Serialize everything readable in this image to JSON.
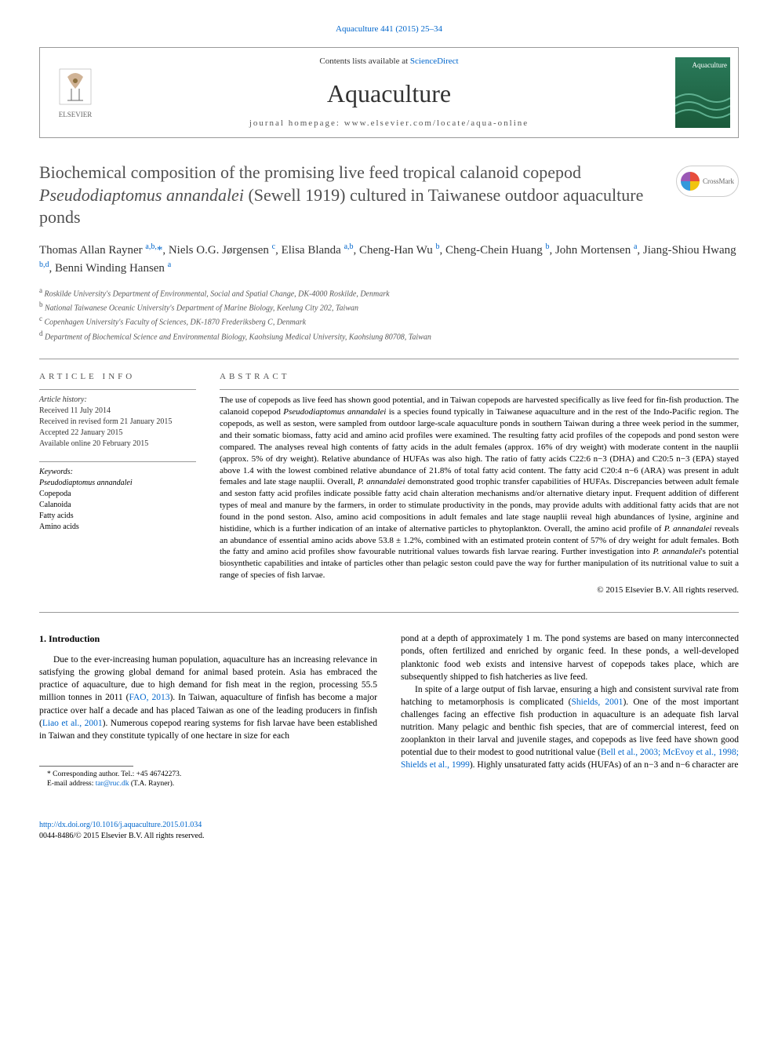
{
  "journal_ref": "Aquaculture 441 (2015) 25–34",
  "header": {
    "contents_text": "Contents lists available at ",
    "contents_link": "ScienceDirect",
    "journal_name": "Aquaculture",
    "homepage_label": "journal homepage: ",
    "homepage_url": "www.elsevier.com/locate/aqua-online",
    "publisher": "ELSEVIER",
    "cover_title": "Aquaculture"
  },
  "crossmark": "CrossMark",
  "title_html": "Biochemical composition of the promising live feed tropical calanoid copepod <em>Pseudodiaptomus annandalei</em> (Sewell 1919) cultured in Taiwanese outdoor aquaculture ponds",
  "authors_html": "Thomas Allan Rayner <sup>a,b,</sup><span class='corr'>*</span>, Niels O.G. Jørgensen <sup>c</sup>, Elisa Blanda <sup>a,b</sup>, Cheng-Han Wu <sup>b</sup>, Cheng-Chein Huang <sup>b</sup>, John Mortensen <sup>a</sup>, Jiang-Shiou Hwang <sup>b,d</sup>, Benni Winding Hansen <sup>a</sup>",
  "affiliations": [
    {
      "sup": "a",
      "text": "Roskilde University's Department of Environmental, Social and Spatial Change, DK-4000 Roskilde, Denmark"
    },
    {
      "sup": "b",
      "text": "National Taiwanese Oceanic University's Department of Marine Biology, Keelung City 202, Taiwan"
    },
    {
      "sup": "c",
      "text": "Copenhagen University's Faculty of Sciences, DK-1870 Frederiksberg C, Denmark"
    },
    {
      "sup": "d",
      "text": "Department of Biochemical Science and Environmental Biology, Kaohsiung Medical University, Kaohsiung 80708, Taiwan"
    }
  ],
  "info": {
    "heading": "ARTICLE INFO",
    "history_label": "Article history:",
    "history": [
      "Received 11 July 2014",
      "Received in revised form 21 January 2015",
      "Accepted 22 January 2015",
      "Available online 20 February 2015"
    ],
    "keywords_label": "Keywords:",
    "keywords": [
      "<em>Pseudodiaptomus annandalei</em>",
      "Copepoda",
      "Calanoida",
      "Fatty acids",
      "Amino acids"
    ]
  },
  "abstract": {
    "heading": "ABSTRACT",
    "text_html": "The use of copepods as live feed has shown good potential, and in Taiwan copepods are harvested specifically as live feed for fin-fish production. The calanoid copepod <em>Pseudodiaptomus annandalei</em> is a species found typically in Taiwanese aquaculture and in the rest of the Indo-Pacific region. The copepods, as well as seston, were sampled from outdoor large-scale aquaculture ponds in southern Taiwan during a three week period in the summer, and their somatic biomass, fatty acid and amino acid profiles were examined. The resulting fatty acid profiles of the copepods and pond seston were compared. The analyses reveal high contents of fatty acids in the adult females (approx. 16% of dry weight) with moderate content in the nauplii (approx. 5% of dry weight). Relative abundance of HUFAs was also high. The ratio of fatty acids C22:6 n−3 (DHA) and C20:5 n−3 (EPA) stayed above 1.4 with the lowest combined relative abundance of 21.8% of total fatty acid content. The fatty acid C20:4 n−6 (ARA) was present in adult females and late stage nauplii. Overall, <em>P. annandalei</em> demonstrated good trophic transfer capabilities of HUFAs. Discrepancies between adult female and seston fatty acid profiles indicate possible fatty acid chain alteration mechanisms and/or alternative dietary input. Frequent addition of different types of meal and manure by the farmers, in order to stimulate productivity in the ponds, may provide adults with additional fatty acids that are not found in the pond seston. Also, amino acid compositions in adult females and late stage nauplii reveal high abundances of lysine, arginine and histidine, which is a further indication of an intake of alternative particles to phytoplankton. Overall, the amino acid profile of <em>P. annandalei</em> reveals an abundance of essential amino acids above 53.8 ± 1.2%, combined with an estimated protein content of 57% of dry weight for adult females. Both the fatty and amino acid profiles show favourable nutritional values towards fish larvae rearing. Further investigation into <em>P. annandalei</em>'s potential biosynthetic capabilities and intake of particles other than pelagic seston could pave the way for further manipulation of its nutritional value to suit a range of species of fish larvae.",
    "copyright": "© 2015 Elsevier B.V. All rights reserved."
  },
  "body": {
    "section_heading": "1. Introduction",
    "col1_p1_html": "Due to the ever-increasing human population, aquaculture has an increasing relevance in satisfying the growing global demand for animal based protein. Asia has embraced the practice of aquaculture, due to high demand for fish meat in the region, processing 55.5 million tonnes in 2011 (<a href='#'>FAO, 2013</a>). In Taiwan, aquaculture of finfish has become a major practice over half a decade and has placed Taiwan as one of the leading producers in finfish (<a href='#'>Liao et al., 2001</a>). Numerous copepod rearing systems for fish larvae have been established in Taiwan and they constitute typically of one hectare in size for each",
    "col2_p1_html": "pond at a depth of approximately 1 m. The pond systems are based on many interconnected ponds, often fertilized and enriched by organic feed. In these ponds, a well-developed planktonic food web exists and intensive harvest of copepods takes place, which are subsequently shipped to fish hatcheries as live feed.",
    "col2_p2_html": "In spite of a large output of fish larvae, ensuring a high and consistent survival rate from hatching to metamorphosis is complicated (<a href='#'>Shields, 2001</a>). One of the most important challenges facing an effective fish production in aquaculture is an adequate fish larval nutrition. Many pelagic and benthic fish species, that are of commercial interest, feed on zooplankton in their larval and juvenile stages, and copepods as live feed have shown good potential due to their modest to good nutritional value (<a href='#'>Bell et al., 2003; McEvoy et al., 1998; Shields et al., 1999</a>). Highly unsaturated fatty acids (HUFAs) of an n−3 and n−6 character are"
  },
  "footnote": {
    "corr_text": "* Corresponding author. Tel.: +45 46742273.",
    "email_label": "E-mail address: ",
    "email": "tar@ruc.dk",
    "email_suffix": " (T.A. Rayner)."
  },
  "footer": {
    "doi": "http://dx.doi.org/10.1016/j.aquaculture.2015.01.034",
    "issn_line": "0044-8486/© 2015 Elsevier B.V. All rights reserved."
  },
  "colors": {
    "link": "#0066cc",
    "text": "#000000",
    "title_gray": "#505050",
    "rule": "#999999",
    "cover_bg": "#2a7a5a"
  }
}
